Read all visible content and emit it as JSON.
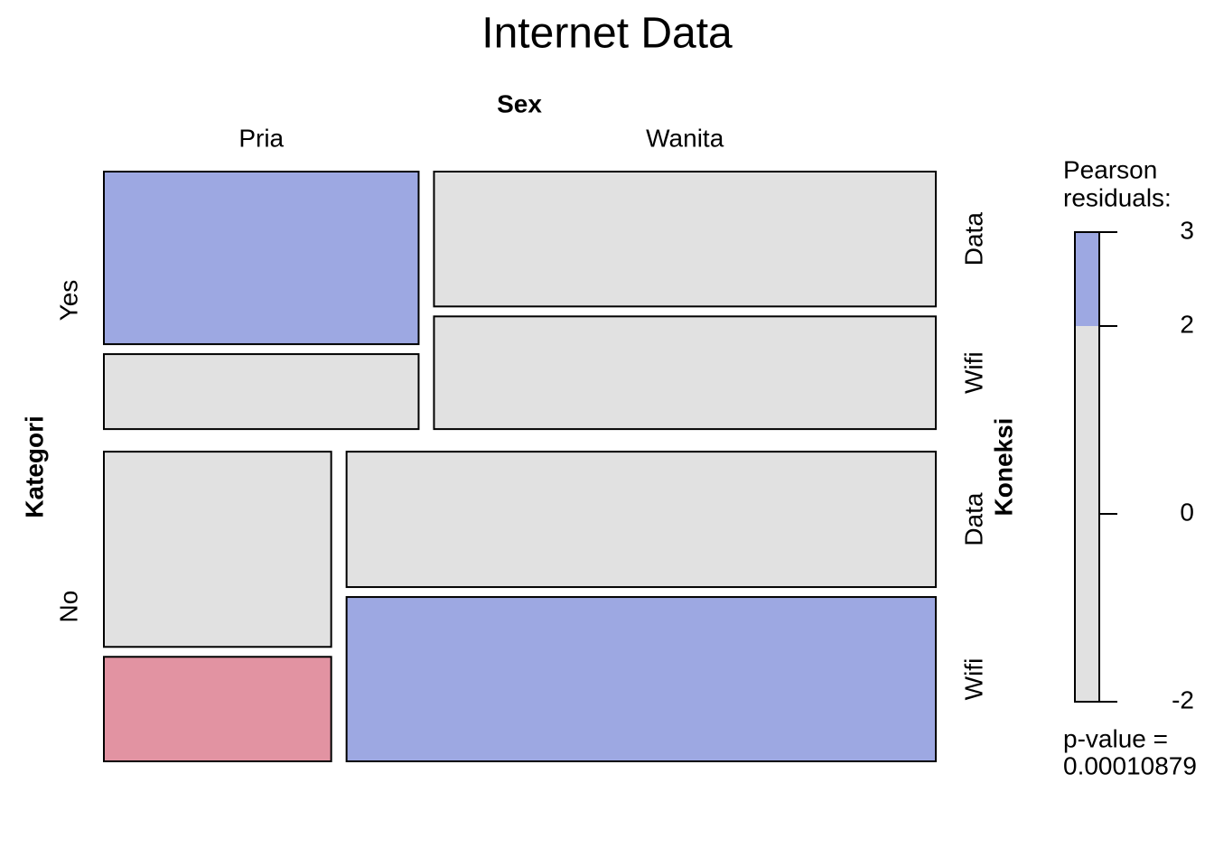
{
  "chart_data": {
    "type": "mosaic",
    "title": "Internet Data",
    "x_label": "Sex",
    "x_levels": [
      "Pria",
      "Wanita"
    ],
    "y_label": "Kategori",
    "y_levels": [
      "Yes",
      "No"
    ],
    "z_label": "Koneksi",
    "z_levels": [
      "Data",
      "Wifi"
    ],
    "values": [
      [
        [
          12.2,
          5.3
        ],
        [
          15.2,
          12.7
        ]
      ],
      [
        [
          9.9,
          5.3
        ],
        [
          17.8,
          21.6
        ]
      ]
    ],
    "colors": [
      [
        [
          "#9da8e2",
          "#e1e1e1"
        ],
        [
          "#e1e1e1",
          "#e1e1e1"
        ]
      ],
      [
        [
          "#e1e1e1",
          "#e293a2"
        ],
        [
          "#e1e1e1",
          "#9da8e2"
        ]
      ]
    ],
    "legend": {
      "title_lines": [
        "Pearson",
        "residuals:"
      ],
      "ylim": [
        -2,
        3
      ],
      "yticks": [
        3,
        2,
        0,
        -2
      ],
      "bands": [
        {
          "from": 2,
          "to": 3,
          "color": "#9da8e2"
        },
        {
          "from": -2,
          "to": 2,
          "color": "#e1e1e1"
        }
      ]
    },
    "p_value_lines": [
      "p-value =",
      "0.00010879"
    ]
  }
}
